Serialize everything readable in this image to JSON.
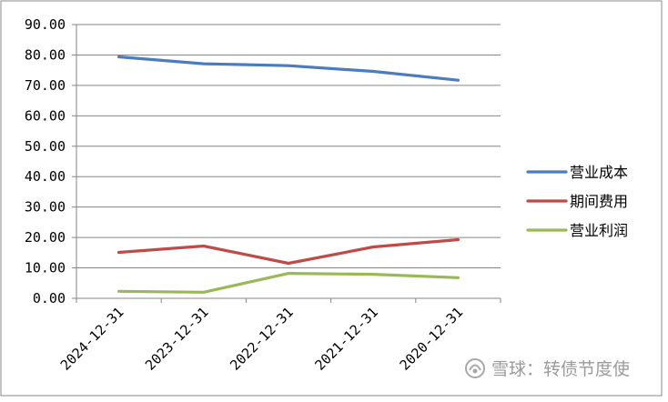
{
  "chart_data": {
    "type": "line",
    "categories": [
      "2024-12-31",
      "2023-12-31",
      "2022-12-31",
      "2021-12-31",
      "2020-12-31"
    ],
    "series": [
      {
        "name": "营业成本",
        "color": "#4a7cbe",
        "values": [
          79.4,
          77.1,
          76.5,
          74.6,
          71.7
        ]
      },
      {
        "name": "期间费用",
        "color": "#be4b48",
        "values": [
          15.1,
          17.2,
          11.5,
          16.9,
          19.3
        ]
      },
      {
        "name": "营业利润",
        "color": "#98b954",
        "values": [
          2.3,
          2.0,
          8.2,
          7.9,
          6.8
        ]
      }
    ],
    "y_ticks": [
      "0.00",
      "10.00",
      "20.00",
      "30.00",
      "40.00",
      "50.00",
      "60.00",
      "70.00",
      "80.00",
      "90.00"
    ],
    "ylim": [
      0,
      90
    ],
    "grid": true,
    "legend_position": "right"
  },
  "watermark": {
    "brand": "雪球",
    "separator": "：",
    "author": "转债节度使",
    "icon": "snowball-logo-icon"
  }
}
